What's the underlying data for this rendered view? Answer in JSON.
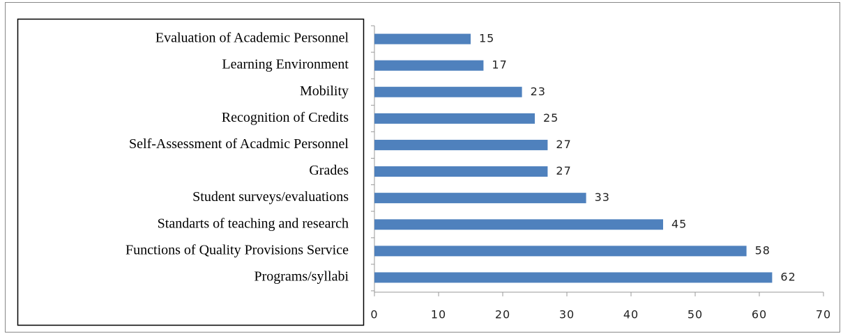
{
  "chart_data": {
    "type": "bar",
    "orientation": "horizontal",
    "categories": [
      "Evaluation of Academic Personnel",
      "Learning Environment",
      "Mobility",
      "Recognition of Credits",
      "Self-Assessment of Acadmic Personnel",
      "Grades",
      "Student surveys/evaluations",
      "Standarts of teaching and research",
      "Functions of Quality Provisions Service",
      "Programs/syllabi"
    ],
    "values": [
      15,
      17,
      23,
      25,
      27,
      27,
      33,
      45,
      58,
      62
    ],
    "color": "#4f81bd",
    "xlim": [
      0,
      70
    ],
    "xticks": [
      0,
      10,
      20,
      30,
      40,
      50,
      60,
      70
    ]
  }
}
